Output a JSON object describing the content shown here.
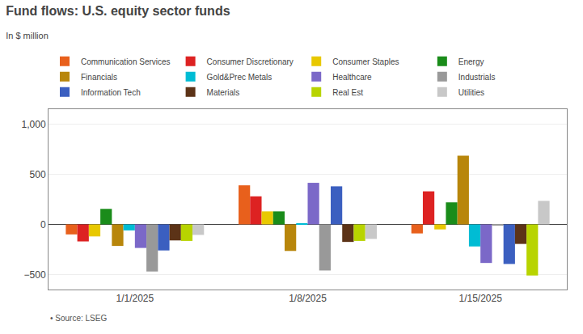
{
  "chart_data": {
    "type": "bar",
    "title": "Fund flows: U.S. equity sector funds",
    "subtitle": "In $ million",
    "source": "• Source: LSEG",
    "categories": [
      "1/1/2025",
      "1/8/2025",
      "1/15/2025"
    ],
    "series": [
      {
        "name": "Communication Services",
        "color": "#e8601c",
        "values": [
          -100,
          390,
          -90
        ]
      },
      {
        "name": "Consumer Discretionary",
        "color": "#dd2222",
        "values": [
          -170,
          280,
          330
        ]
      },
      {
        "name": "Consumer Staples",
        "color": "#e8c800",
        "values": [
          -120,
          130,
          -50
        ]
      },
      {
        "name": "Energy",
        "color": "#1a8c1a",
        "values": [
          155,
          130,
          220
        ]
      },
      {
        "name": "Financials",
        "color": "#b8860b",
        "values": [
          -215,
          -265,
          685
        ]
      },
      {
        "name": "Gold&Prec Metals",
        "color": "#00bcd4",
        "values": [
          -60,
          10,
          -220
        ]
      },
      {
        "name": "Healthcare",
        "color": "#7b68c8",
        "values": [
          -235,
          415,
          -385
        ]
      },
      {
        "name": "Industrials",
        "color": "#999999",
        "values": [
          -470,
          -460,
          -10
        ]
      },
      {
        "name": "Information Tech",
        "color": "#3b5fc0",
        "values": [
          -260,
          380,
          -395
        ]
      },
      {
        "name": "Materials",
        "color": "#5c3317",
        "values": [
          -160,
          -175,
          -195
        ]
      },
      {
        "name": "Real Est",
        "color": "#b8d400",
        "values": [
          -165,
          -165,
          -510
        ]
      },
      {
        "name": "Utilities",
        "color": "#c8c8c8",
        "values": [
          -105,
          -145,
          235
        ]
      }
    ],
    "ylim": [
      -650,
      1150
    ],
    "yticks": [
      {
        "value": -500,
        "label": "−500"
      },
      0,
      500,
      {
        "value": 1000,
        "label": "1,000"
      }
    ],
    "grid": true,
    "legend": "top"
  }
}
